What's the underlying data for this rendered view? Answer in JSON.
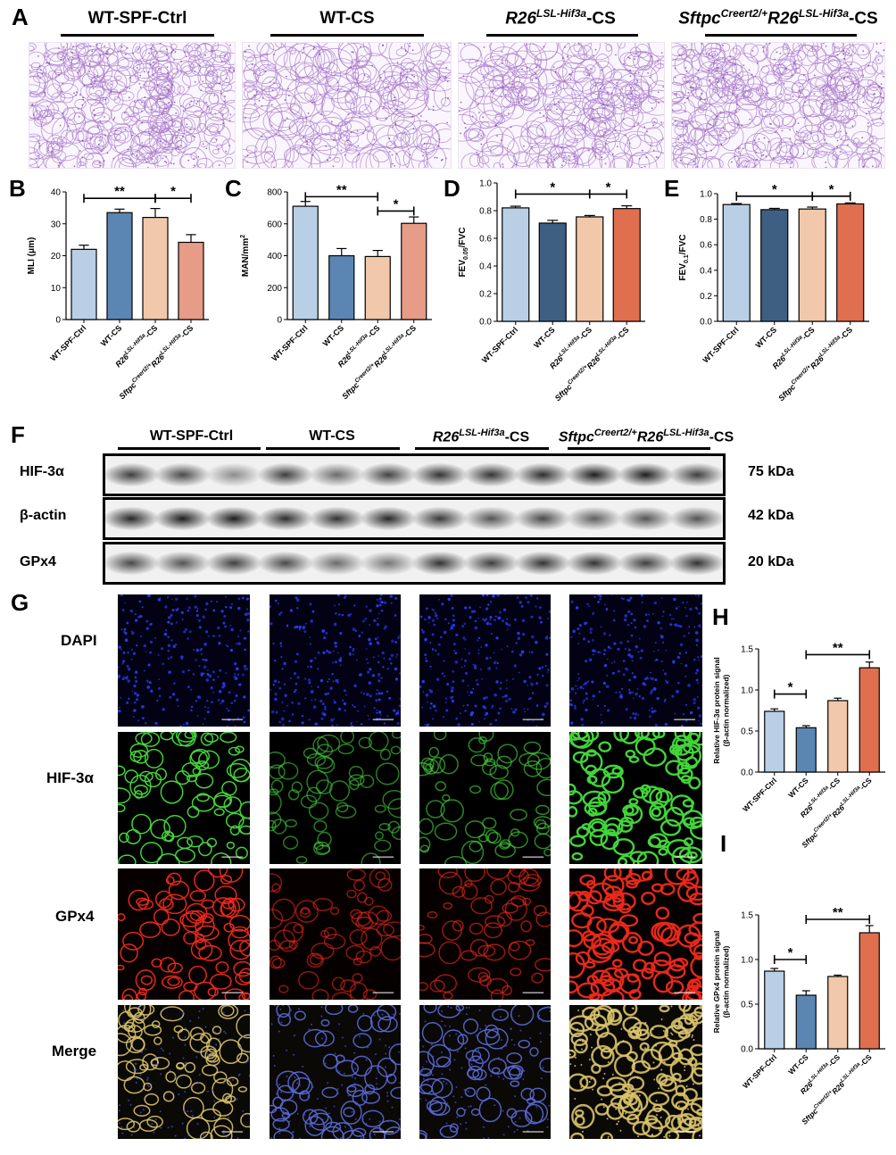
{
  "panels": {
    "A": "A",
    "B": "B",
    "C": "C",
    "D": "D",
    "E": "E",
    "F": "F",
    "G": "G",
    "H": "H",
    "I": "I"
  },
  "groups": [
    {
      "name": "WT-SPF-Ctrl",
      "gene": "",
      "sup": "",
      "suffix": "WT-SPF-Ctrl"
    },
    {
      "name": "WT-CS",
      "gene": "",
      "sup": "",
      "suffix": "WT-CS"
    },
    {
      "name": "R26LSL-Hif3a-CS",
      "gene": "R26",
      "sup": "LSL-Hif3a",
      "suffix": "-CS"
    },
    {
      "name": "Sftpc Creert2/+ R26LSL-Hif3a-CS",
      "gene": "Sftpc",
      "sup": "Creert2/+",
      "gene2": "R26",
      "sup2": "LSL-Hif3a",
      "suffix": "-CS"
    }
  ],
  "colors": {
    "g1": "#b9cfe6",
    "g2": "#5b86b3",
    "g2dark": "#3e5f82",
    "g3": "#f1c8aa",
    "g4": "#e69c86",
    "g4dark": "#df6f4f",
    "histo": "#a778c9"
  },
  "western": {
    "rows": [
      {
        "label": "HIF-3α",
        "kda": "75 kDa"
      },
      {
        "label": "β-actin",
        "kda": "42 kDa"
      },
      {
        "label": "GPx4",
        "kda": "20 kDa"
      }
    ]
  },
  "fluor": {
    "rows": [
      "DAPI",
      "HIF-3α",
      "GPx4",
      "Merge"
    ]
  },
  "charts": {
    "B": {
      "chart_data": {
        "type": "bar",
        "ylabel": "MLI (μm)",
        "ylim": [
          0,
          40
        ],
        "yticks": [
          0,
          10,
          20,
          30,
          40
        ],
        "categories": [
          "WT-SPF-Ctrl",
          "WT-CS",
          "R26LSL-Hif3a-CS",
          "SftpcCreert2/+R26LSL-Hif3a-CS"
        ],
        "values": [
          22,
          33.5,
          32,
          24.2
        ],
        "errors": [
          1.3,
          1.1,
          2.8,
          2.4
        ],
        "colorKeys": [
          "g1",
          "g2",
          "g3",
          "g4"
        ],
        "sig": [
          {
            "from": 0,
            "to": 2,
            "label": "**",
            "y": 38
          },
          {
            "from": 2,
            "to": 3,
            "label": "*",
            "y": 38
          }
        ]
      }
    },
    "C": {
      "chart_data": {
        "type": "bar",
        "ylabel": "MAN/mm2",
        "ylim": [
          0,
          800
        ],
        "yticks": [
          0,
          200,
          400,
          600,
          800
        ],
        "categories": [
          "WT-SPF-Ctrl",
          "WT-CS",
          "R26LSL-Hif3a-CS",
          "SftpcCreert2/+R26LSL-Hif3a-CS"
        ],
        "values": [
          710,
          400,
          395,
          603
        ],
        "errors": [
          30,
          45,
          38,
          40
        ],
        "colorKeys": [
          "g1",
          "g2",
          "g3",
          "g4"
        ],
        "sig": [
          {
            "from": 0,
            "to": 2,
            "label": "**",
            "y": 770
          },
          {
            "from": 2,
            "to": 3,
            "label": "*",
            "y": 680
          }
        ]
      }
    },
    "D": {
      "chart_data": {
        "type": "bar",
        "ylabel": "FEV0.05/FVC",
        "ylim": [
          0,
          1.0
        ],
        "yticks": [
          "0.0",
          "0.2",
          "0.4",
          "0.6",
          "0.8",
          "1.0"
        ],
        "categories": [
          "WT-SPF-Ctrl",
          "WT-CS",
          "R26LSL-Hif3a-CS",
          "SftpcCreert2/+R26LSL-Hif3a-CS"
        ],
        "values": [
          0.82,
          0.71,
          0.755,
          0.815
        ],
        "errors": [
          0.012,
          0.02,
          0.01,
          0.02
        ],
        "colorKeys": [
          "g1",
          "g2dark",
          "g3",
          "g4dark"
        ],
        "sig": [
          {
            "from": 0,
            "to": 2,
            "label": "*",
            "y": 0.92
          },
          {
            "from": 2,
            "to": 3,
            "label": "*",
            "y": 0.92
          }
        ]
      }
    },
    "E": {
      "chart_data": {
        "type": "bar",
        "ylabel": "FEV0.1/FVC",
        "ylim": [
          0,
          1.0
        ],
        "yticks": [
          "0.0",
          "0.2",
          "0.4",
          "0.6",
          "0.8",
          "1.0"
        ],
        "categories": [
          "WT-SPF-Ctrl",
          "WT-CS",
          "R26LSL-Hif3a-CS",
          "SftpcCreert2/+R26LSL-Hif3a-CS"
        ],
        "values": [
          0.915,
          0.875,
          0.88,
          0.92
        ],
        "errors": [
          0.008,
          0.01,
          0.015,
          0.008
        ],
        "colorKeys": [
          "g1",
          "g2dark",
          "g3",
          "g4dark"
        ],
        "sig": [
          {
            "from": 0,
            "to": 2,
            "label": "*",
            "y": 0.98
          },
          {
            "from": 2,
            "to": 3,
            "label": "*",
            "y": 0.98
          }
        ]
      }
    },
    "H": {
      "chart_data": {
        "type": "bar",
        "ylabel": "Relative HIF-3α protein signal (β-actin normalized)",
        "ylim": [
          0,
          1.5
        ],
        "yticks": [
          "0.0",
          "0.5",
          "1.0",
          "1.5"
        ],
        "categories": [
          "WT-SPF-Ctrl",
          "WT-CS",
          "R26LSL-Hif3a-CS",
          "SftpcCreert2/+R26LSL-Hif3a-CS"
        ],
        "values": [
          0.74,
          0.54,
          0.87,
          1.27
        ],
        "errors": [
          0.03,
          0.025,
          0.03,
          0.07
        ],
        "colorKeys": [
          "g1",
          "g2",
          "g3",
          "g4dark"
        ],
        "sig": [
          {
            "from": 0,
            "to": 1,
            "label": "*",
            "y": 0.95
          },
          {
            "from": 1,
            "to": 3,
            "label": "**",
            "y": 1.43
          }
        ]
      }
    },
    "I": {
      "chart_data": {
        "type": "bar",
        "ylabel": "Relative GPx4 protein signal (β-actin normalized)",
        "ylim": [
          0,
          1.5
        ],
        "yticks": [
          "0.0",
          "0.5",
          "1.0",
          "1.5"
        ],
        "categories": [
          "WT-SPF-Ctrl",
          "WT-CS",
          "R26LSL-Hif3a-CS",
          "SftpcCreert2/+R26LSL-Hif3a-CS"
        ],
        "values": [
          0.87,
          0.6,
          0.81,
          1.3
        ],
        "errors": [
          0.03,
          0.05,
          0.015,
          0.08
        ],
        "colorKeys": [
          "g1",
          "g2",
          "g3",
          "g4dark"
        ],
        "sig": [
          {
            "from": 0,
            "to": 1,
            "label": "*",
            "y": 1.0
          },
          {
            "from": 1,
            "to": 3,
            "label": "**",
            "y": 1.45
          }
        ]
      }
    }
  }
}
